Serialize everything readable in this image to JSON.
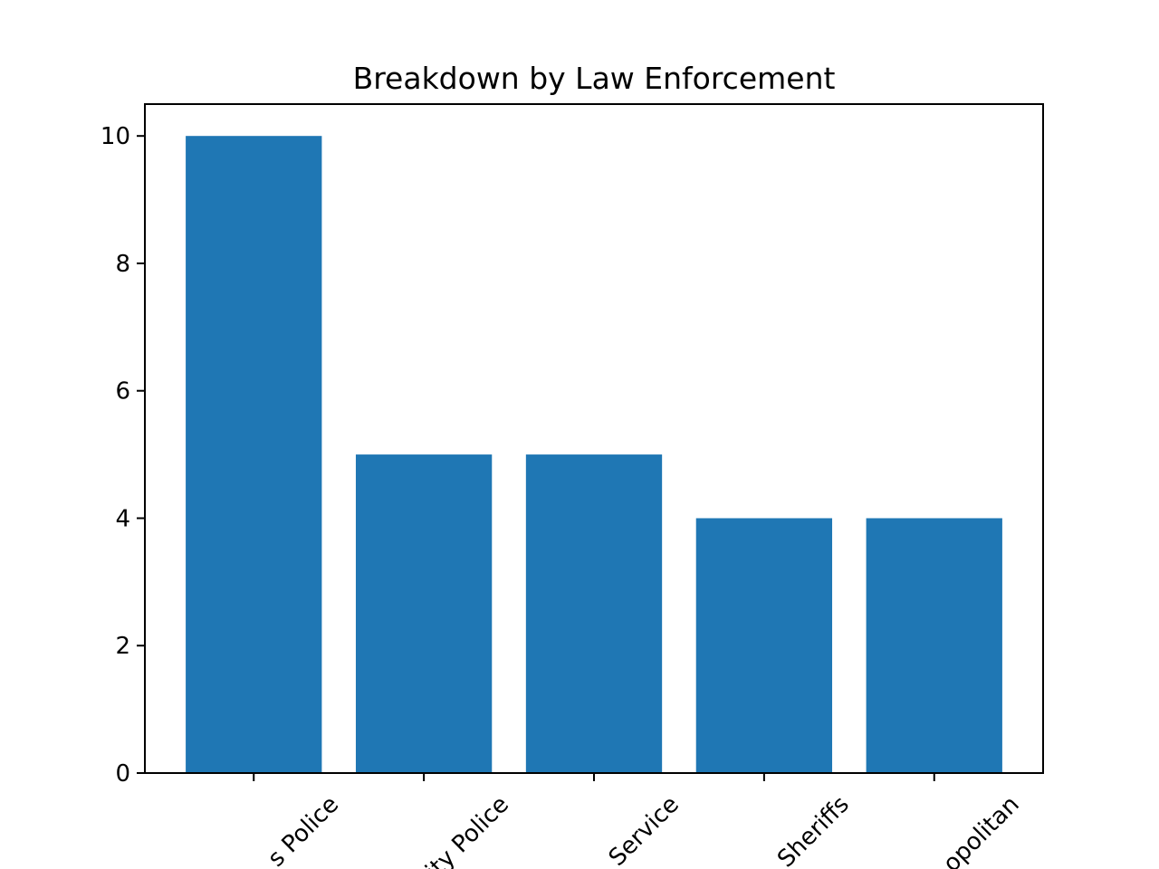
{
  "chart_data": {
    "type": "bar",
    "title": "Breakdown by Law Enforcement",
    "xlabel": "",
    "ylabel": "",
    "categories": [
      "s Police",
      "ity Police",
      "Service",
      "Sheriffs",
      "opolitan"
    ],
    "values": [
      10,
      5,
      5,
      4,
      4
    ],
    "ylim": [
      0,
      10.5
    ],
    "yticks": [
      0,
      2,
      4,
      6,
      8,
      10
    ],
    "ytick_labels": [
      "0",
      "2",
      "4",
      "6",
      "8",
      "10"
    ],
    "bar_color": "#1f77b4",
    "grid": false,
    "legend": "none"
  }
}
